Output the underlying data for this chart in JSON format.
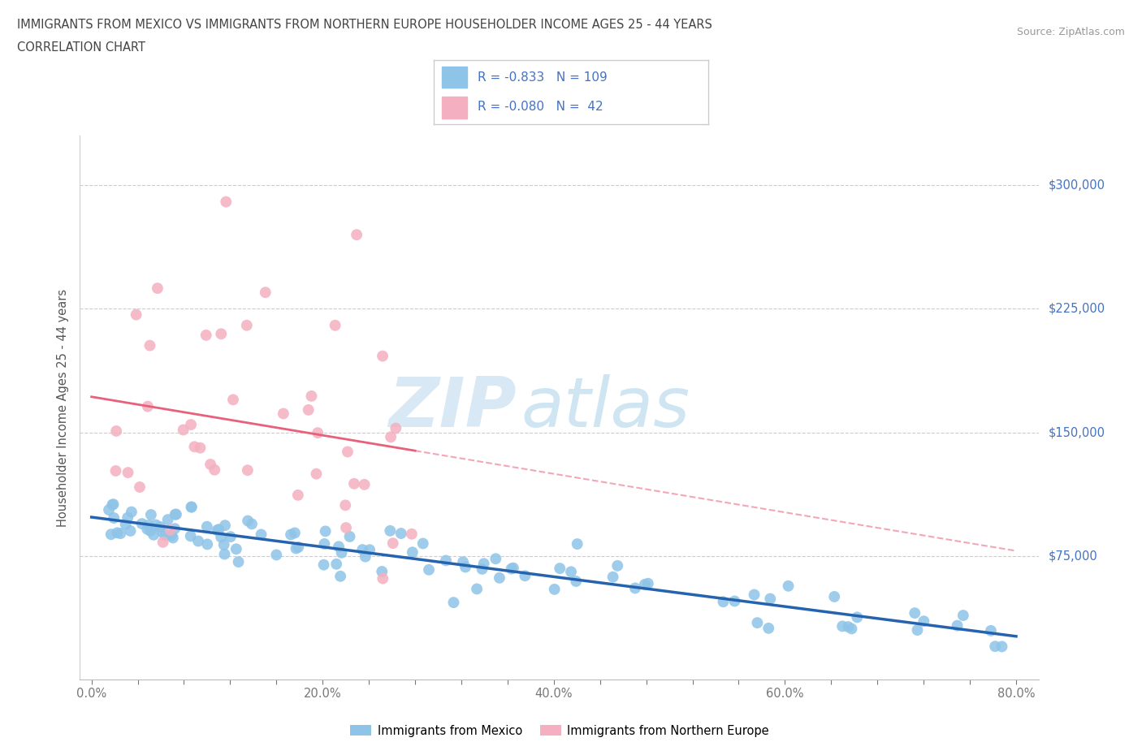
{
  "title_line1": "IMMIGRANTS FROM MEXICO VS IMMIGRANTS FROM NORTHERN EUROPE HOUSEHOLDER INCOME AGES 25 - 44 YEARS",
  "title_line2": "CORRELATION CHART",
  "source_text": "Source: ZipAtlas.com",
  "ylabel": "Householder Income Ages 25 - 44 years",
  "xlim": [
    -0.01,
    0.82
  ],
  "ylim": [
    0,
    330000
  ],
  "yticks": [
    0,
    75000,
    150000,
    225000,
    300000
  ],
  "ytick_labels": [
    "",
    "$75,000",
    "$150,000",
    "$225,000",
    "$300,000"
  ],
  "xtick_labels": [
    "0.0%",
    "",
    "",
    "",
    "",
    "20.0%",
    "",
    "",
    "",
    "",
    "40.0%",
    "",
    "",
    "",
    "",
    "60.0%",
    "",
    "",
    "",
    "",
    "80.0%"
  ],
  "xtick_vals": [
    0.0,
    0.04,
    0.08,
    0.12,
    0.16,
    0.2,
    0.24,
    0.28,
    0.32,
    0.36,
    0.4,
    0.44,
    0.48,
    0.52,
    0.56,
    0.6,
    0.64,
    0.68,
    0.72,
    0.76,
    0.8
  ],
  "mexico_color": "#8ec4e8",
  "mexico_color_line": "#2563ae",
  "northern_europe_color": "#f4b0c0",
  "northern_europe_color_line": "#e8607a",
  "R_mexico": -0.833,
  "N_mexico": 109,
  "R_northern": -0.08,
  "N_northern": 42,
  "background_color": "#ffffff",
  "grid_color": "#cccccc",
  "watermark_zip": "ZIP",
  "watermark_atlas": "atlas",
  "legend_mexico": "Immigrants from Mexico",
  "legend_northern": "Immigrants from Northern Europe",
  "title_color": "#444444",
  "tick_color": "#777777",
  "right_label_color": "#4472c4",
  "legend_label_color": "#4472c4"
}
